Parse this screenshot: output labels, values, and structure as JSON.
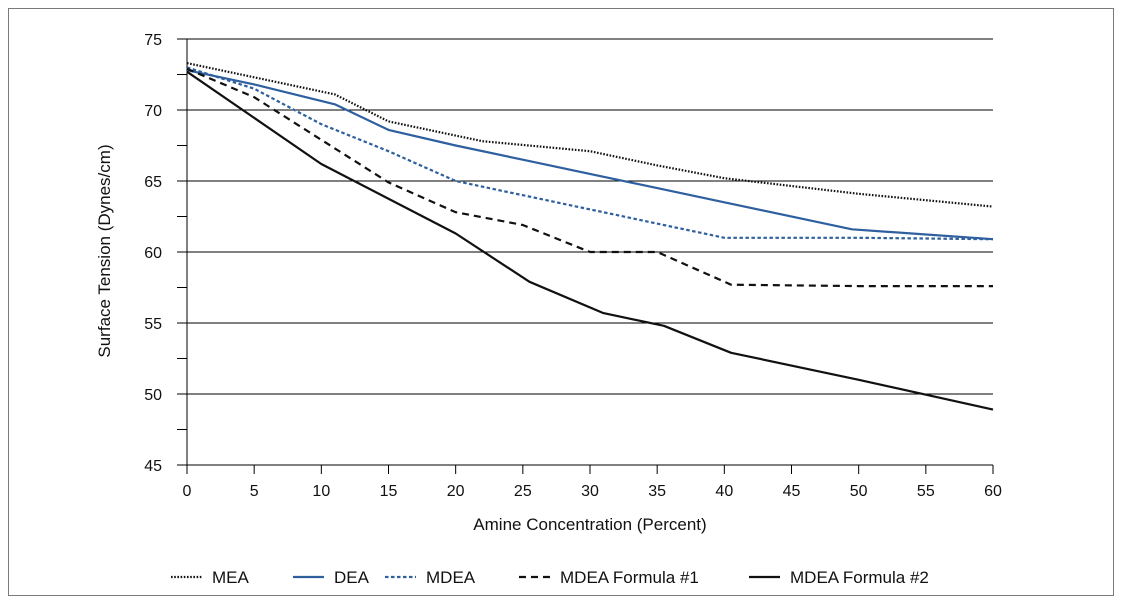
{
  "chart_data": {
    "type": "line",
    "xlabel": "Amine Concentration (Percent)",
    "ylabel": "Surface Tension (Dynes/cm)",
    "xlim": [
      0,
      60
    ],
    "ylim": [
      45,
      75
    ],
    "x_ticks": [
      0,
      5,
      10,
      15,
      20,
      25,
      30,
      35,
      40,
      45,
      50,
      55,
      60
    ],
    "y_ticks": [
      45,
      50,
      55,
      60,
      65,
      70,
      75
    ],
    "y_minor_step": 2.5,
    "grid": "horizontal major lines",
    "legend_position": "bottom",
    "series": [
      {
        "name": "MEA",
        "color": "#111111",
        "dash": "dotted",
        "points": [
          [
            0,
            73.3
          ],
          [
            5,
            72.3
          ],
          [
            11,
            71.1
          ],
          [
            15,
            69.2
          ],
          [
            20,
            68.2
          ],
          [
            22,
            67.8
          ],
          [
            30,
            67.1
          ],
          [
            35,
            66.1
          ],
          [
            40,
            65.2
          ],
          [
            50,
            64.1
          ],
          [
            60,
            63.2
          ]
        ]
      },
      {
        "name": "DEA",
        "color": "#2e5f9e",
        "dash": "solid",
        "points": [
          [
            0,
            72.8
          ],
          [
            5,
            71.8
          ],
          [
            11,
            70.4
          ],
          [
            15,
            68.6
          ],
          [
            20,
            67.5
          ],
          [
            25,
            66.5
          ],
          [
            30,
            65.5
          ],
          [
            35,
            64.5
          ],
          [
            40,
            63.5
          ],
          [
            49.5,
            61.6
          ],
          [
            60,
            60.9
          ]
        ]
      },
      {
        "name": "MDEA",
        "color": "#2e5f9e",
        "dash": "short-dash",
        "points": [
          [
            0,
            73.0
          ],
          [
            5,
            71.5
          ],
          [
            10,
            69.0
          ],
          [
            15,
            67.1
          ],
          [
            20,
            65.0
          ],
          [
            25,
            64.0
          ],
          [
            30,
            63.0
          ],
          [
            35,
            62.0
          ],
          [
            40,
            61.0
          ],
          [
            50,
            61.0
          ],
          [
            60,
            60.9
          ]
        ]
      },
      {
        "name": "MDEA Formula #1",
        "color": "#111111",
        "dash": "dashed",
        "points": [
          [
            0,
            72.9
          ],
          [
            5,
            70.9
          ],
          [
            10,
            67.9
          ],
          [
            15,
            64.9
          ],
          [
            20,
            62.8
          ],
          [
            25,
            61.9
          ],
          [
            30,
            60.0
          ],
          [
            35,
            60.0
          ],
          [
            40.5,
            57.7
          ],
          [
            50,
            57.6
          ],
          [
            60,
            57.6
          ]
        ]
      },
      {
        "name": "MDEA Formula #2",
        "color": "#111111",
        "dash": "solid",
        "points": [
          [
            0,
            72.7
          ],
          [
            10,
            66.2
          ],
          [
            20,
            61.3
          ],
          [
            25.5,
            57.9
          ],
          [
            31,
            55.7
          ],
          [
            35.5,
            54.8
          ],
          [
            40.5,
            52.9
          ],
          [
            50,
            51.0
          ],
          [
            60,
            48.9
          ]
        ]
      }
    ]
  }
}
